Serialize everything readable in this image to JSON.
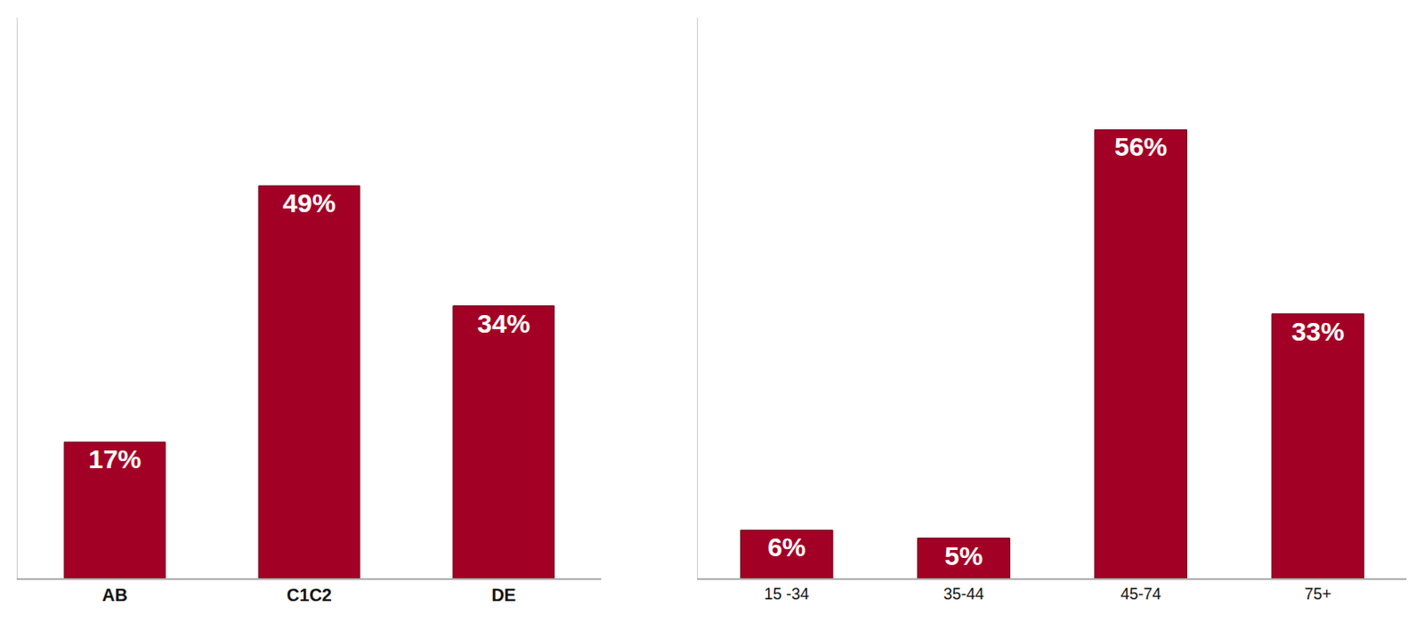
{
  "chart_data": [
    {
      "type": "bar",
      "categories": [
        "AB",
        "C1C2",
        "DE"
      ],
      "values": [
        17,
        49,
        34
      ],
      "value_labels": [
        "17%",
        "49%",
        "34%"
      ],
      "color": "#a30026",
      "ylim": [
        0,
        70
      ],
      "data_labels": true,
      "tick_labels": "x",
      "grid": false
    },
    {
      "type": "bar",
      "categories": [
        "15 -34",
        "35-44",
        "45-74",
        "75+"
      ],
      "values": [
        6,
        5,
        56,
        33
      ],
      "value_labels": [
        "6%",
        "5%",
        "56%",
        "33%"
      ],
      "color": "#a30026",
      "ylim": [
        0,
        70
      ],
      "data_labels": true,
      "tick_labels": "x",
      "grid": false
    }
  ]
}
